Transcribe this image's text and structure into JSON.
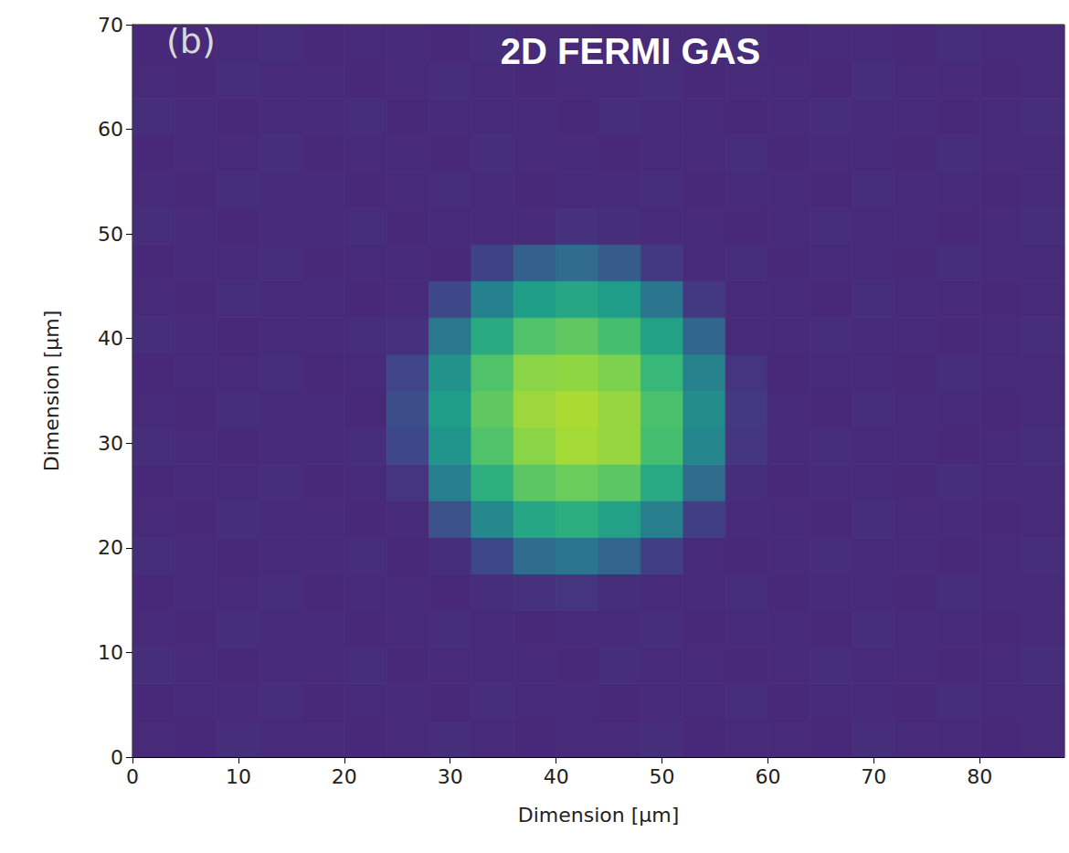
{
  "chart_data": {
    "type": "heatmap",
    "title": "2D FERMI GAS",
    "annotations": [
      "(b)"
    ],
    "x_label": "Dimension [µm]",
    "y_label": "Dimension [µm]",
    "xlim": [
      0,
      88
    ],
    "xticks": [
      0,
      10,
      20,
      30,
      40,
      50,
      60,
      70,
      80
    ],
    "ylim": [
      0,
      70
    ],
    "yticks": [
      0,
      10,
      20,
      30,
      40,
      50,
      60,
      70
    ],
    "x_bins": [
      0,
      4,
      8,
      12,
      16,
      20,
      24,
      28,
      32,
      36,
      40,
      44,
      48,
      52,
      56,
      60,
      64,
      68,
      72,
      76,
      80,
      84,
      88
    ],
    "y_bins": [
      0,
      3.5,
      7,
      10.5,
      14,
      17.5,
      21,
      24.5,
      28,
      31.5,
      35,
      38.5,
      42,
      45.5,
      49,
      52.5,
      56,
      59.5,
      63,
      66.5,
      70
    ],
    "color_range": [
      0,
      1
    ],
    "cells": [
      [
        0.12,
        0.11,
        0.13,
        0.12,
        0.12,
        0.11,
        0.12,
        0.13,
        0.12,
        0.11,
        0.12,
        0.12,
        0.13,
        0.11,
        0.12,
        0.12,
        0.11,
        0.13,
        0.12,
        0.12,
        0.11,
        0.12
      ],
      [
        0.11,
        0.12,
        0.12,
        0.13,
        0.11,
        0.12,
        0.12,
        0.11,
        0.13,
        0.12,
        0.12,
        0.11,
        0.12,
        0.12,
        0.13,
        0.11,
        0.12,
        0.12,
        0.11,
        0.13,
        0.12,
        0.12
      ],
      [
        0.13,
        0.12,
        0.11,
        0.12,
        0.12,
        0.13,
        0.11,
        0.12,
        0.12,
        0.12,
        0.11,
        0.13,
        0.12,
        0.12,
        0.11,
        0.12,
        0.13,
        0.12,
        0.12,
        0.11,
        0.12,
        0.13
      ],
      [
        0.12,
        0.11,
        0.13,
        0.12,
        0.12,
        0.11,
        0.12,
        0.13,
        0.12,
        0.11,
        0.12,
        0.12,
        0.13,
        0.11,
        0.12,
        0.12,
        0.11,
        0.13,
        0.12,
        0.12,
        0.11,
        0.12
      ],
      [
        0.11,
        0.12,
        0.12,
        0.13,
        0.11,
        0.12,
        0.12,
        0.11,
        0.13,
        0.14,
        0.15,
        0.13,
        0.12,
        0.12,
        0.13,
        0.11,
        0.12,
        0.12,
        0.11,
        0.13,
        0.12,
        0.12
      ],
      [
        0.13,
        0.12,
        0.11,
        0.12,
        0.12,
        0.13,
        0.11,
        0.13,
        0.22,
        0.35,
        0.39,
        0.32,
        0.19,
        0.12,
        0.11,
        0.12,
        0.13,
        0.12,
        0.12,
        0.11,
        0.12,
        0.13
      ],
      [
        0.12,
        0.11,
        0.13,
        0.12,
        0.12,
        0.11,
        0.12,
        0.25,
        0.47,
        0.59,
        0.62,
        0.57,
        0.43,
        0.19,
        0.12,
        0.12,
        0.11,
        0.13,
        0.12,
        0.12,
        0.11,
        0.12
      ],
      [
        0.11,
        0.12,
        0.12,
        0.13,
        0.11,
        0.12,
        0.15,
        0.43,
        0.63,
        0.74,
        0.77,
        0.74,
        0.6,
        0.35,
        0.13,
        0.11,
        0.12,
        0.12,
        0.11,
        0.13,
        0.12,
        0.12
      ],
      [
        0.13,
        0.12,
        0.11,
        0.12,
        0.12,
        0.13,
        0.22,
        0.52,
        0.72,
        0.82,
        0.86,
        0.84,
        0.7,
        0.46,
        0.16,
        0.12,
        0.13,
        0.12,
        0.12,
        0.11,
        0.12,
        0.13
      ],
      [
        0.12,
        0.11,
        0.13,
        0.12,
        0.12,
        0.11,
        0.24,
        0.55,
        0.75,
        0.85,
        0.87,
        0.84,
        0.71,
        0.49,
        0.17,
        0.12,
        0.11,
        0.13,
        0.12,
        0.12,
        0.11,
        0.12
      ],
      [
        0.11,
        0.12,
        0.12,
        0.13,
        0.11,
        0.12,
        0.21,
        0.51,
        0.72,
        0.82,
        0.83,
        0.8,
        0.67,
        0.45,
        0.15,
        0.11,
        0.12,
        0.12,
        0.11,
        0.13,
        0.12,
        0.12
      ],
      [
        0.13,
        0.12,
        0.11,
        0.12,
        0.12,
        0.13,
        0.14,
        0.4,
        0.61,
        0.72,
        0.75,
        0.7,
        0.57,
        0.33,
        0.12,
        0.12,
        0.13,
        0.12,
        0.12,
        0.11,
        0.12,
        0.13
      ],
      [
        0.12,
        0.11,
        0.13,
        0.12,
        0.12,
        0.11,
        0.12,
        0.22,
        0.44,
        0.56,
        0.59,
        0.55,
        0.39,
        0.17,
        0.12,
        0.12,
        0.11,
        0.13,
        0.12,
        0.12,
        0.11,
        0.12
      ],
      [
        0.11,
        0.12,
        0.12,
        0.13,
        0.11,
        0.12,
        0.12,
        0.11,
        0.2,
        0.3,
        0.35,
        0.29,
        0.17,
        0.12,
        0.13,
        0.11,
        0.12,
        0.12,
        0.11,
        0.13,
        0.12,
        0.12
      ],
      [
        0.13,
        0.12,
        0.11,
        0.12,
        0.12,
        0.13,
        0.11,
        0.12,
        0.12,
        0.12,
        0.14,
        0.13,
        0.12,
        0.12,
        0.11,
        0.12,
        0.13,
        0.12,
        0.12,
        0.11,
        0.12,
        0.13
      ],
      [
        0.12,
        0.11,
        0.13,
        0.12,
        0.12,
        0.11,
        0.12,
        0.13,
        0.12,
        0.11,
        0.12,
        0.12,
        0.13,
        0.11,
        0.12,
        0.12,
        0.11,
        0.13,
        0.12,
        0.12,
        0.11,
        0.12
      ],
      [
        0.11,
        0.12,
        0.12,
        0.13,
        0.11,
        0.12,
        0.12,
        0.11,
        0.13,
        0.12,
        0.12,
        0.11,
        0.12,
        0.12,
        0.13,
        0.11,
        0.12,
        0.12,
        0.11,
        0.13,
        0.12,
        0.12
      ],
      [
        0.13,
        0.12,
        0.11,
        0.12,
        0.12,
        0.13,
        0.11,
        0.12,
        0.12,
        0.12,
        0.11,
        0.13,
        0.12,
        0.12,
        0.11,
        0.12,
        0.13,
        0.12,
        0.12,
        0.11,
        0.12,
        0.13
      ],
      [
        0.12,
        0.11,
        0.13,
        0.12,
        0.12,
        0.11,
        0.12,
        0.13,
        0.12,
        0.11,
        0.12,
        0.12,
        0.13,
        0.11,
        0.12,
        0.12,
        0.11,
        0.13,
        0.12,
        0.12,
        0.11,
        0.12
      ],
      [
        0.11,
        0.12,
        0.12,
        0.13,
        0.11,
        0.12,
        0.12,
        0.11,
        0.13,
        0.12,
        0.12,
        0.11,
        0.12,
        0.12,
        0.13,
        0.11,
        0.12,
        0.12,
        0.11,
        0.13,
        0.12,
        0.12
      ]
    ]
  }
}
